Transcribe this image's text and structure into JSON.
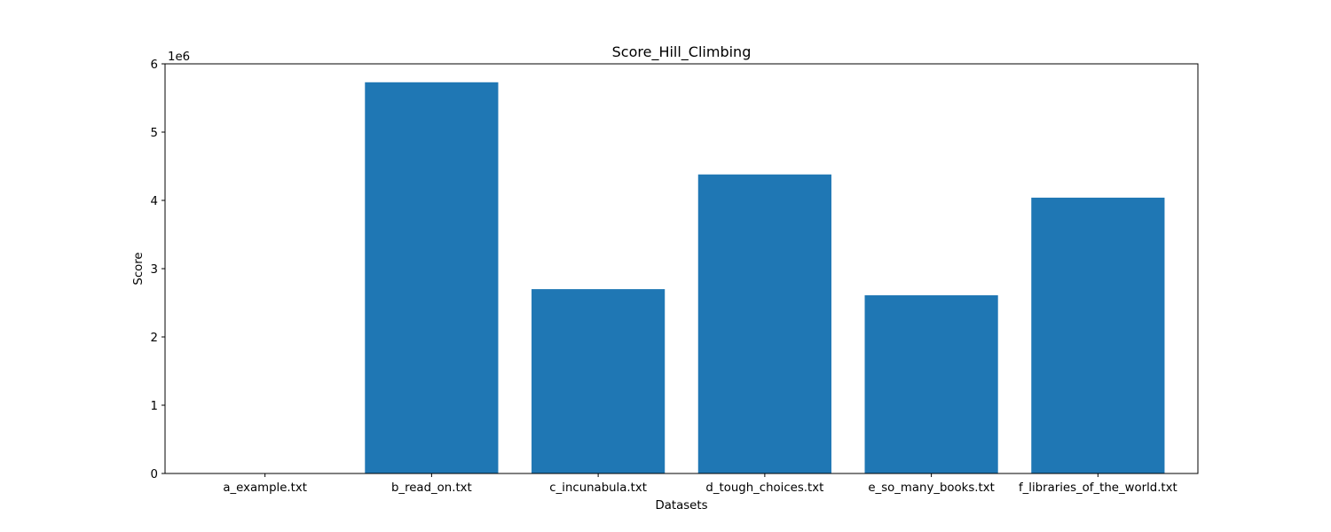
{
  "chart_data": {
    "type": "bar",
    "title": "Score_Hill_Climbing",
    "xlabel": "Datasets",
    "ylabel": "Score",
    "y_offset_label": "1e6",
    "categories": [
      "a_example.txt",
      "b_read_on.txt",
      "c_incunabula.txt",
      "d_tough_choices.txt",
      "e_so_many_books.txt",
      "f_libraries_of_the_world.txt"
    ],
    "values": [
      21,
      5730000,
      2700000,
      4380000,
      2610000,
      4040000
    ],
    "ylim": [
      0,
      6000000
    ],
    "yticks": [
      0,
      1000000,
      2000000,
      3000000,
      4000000,
      5000000,
      6000000
    ],
    "ytick_labels": [
      "0",
      "1",
      "2",
      "3",
      "4",
      "5",
      "6"
    ],
    "bar_color": "#1f77b4",
    "grid": false,
    "legend": "none"
  }
}
